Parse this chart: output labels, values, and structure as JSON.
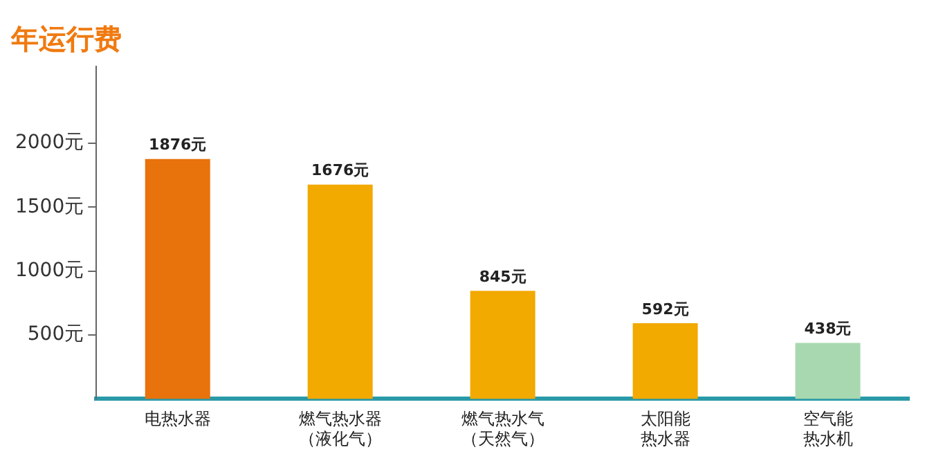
{
  "chart_data": {
    "type": "bar",
    "title": "年运行费",
    "categories": [
      "电热水器",
      "燃气热水器（液化气）",
      "燃气热水气（天然气）",
      "太阳能热水器",
      "空气能热水机"
    ],
    "values": [
      1876,
      1676,
      845,
      592,
      438
    ],
    "colors": [
      "#e8720c",
      "#f2a900",
      "#f2a900",
      "#f2a900",
      "#a8d8b0"
    ],
    "value_labels": [
      "1876元",
      "1676元",
      "845元",
      "592元",
      "438元"
    ],
    "ylim": [
      0,
      2600
    ],
    "yticks": [
      {
        "value": 500,
        "label": "500元"
      },
      {
        "value": 1000,
        "label": "1000元"
      },
      {
        "value": 1500,
        "label": "1500元"
      },
      {
        "value": 2000,
        "label": "2000元"
      }
    ],
    "grid": false,
    "legend": false
  }
}
